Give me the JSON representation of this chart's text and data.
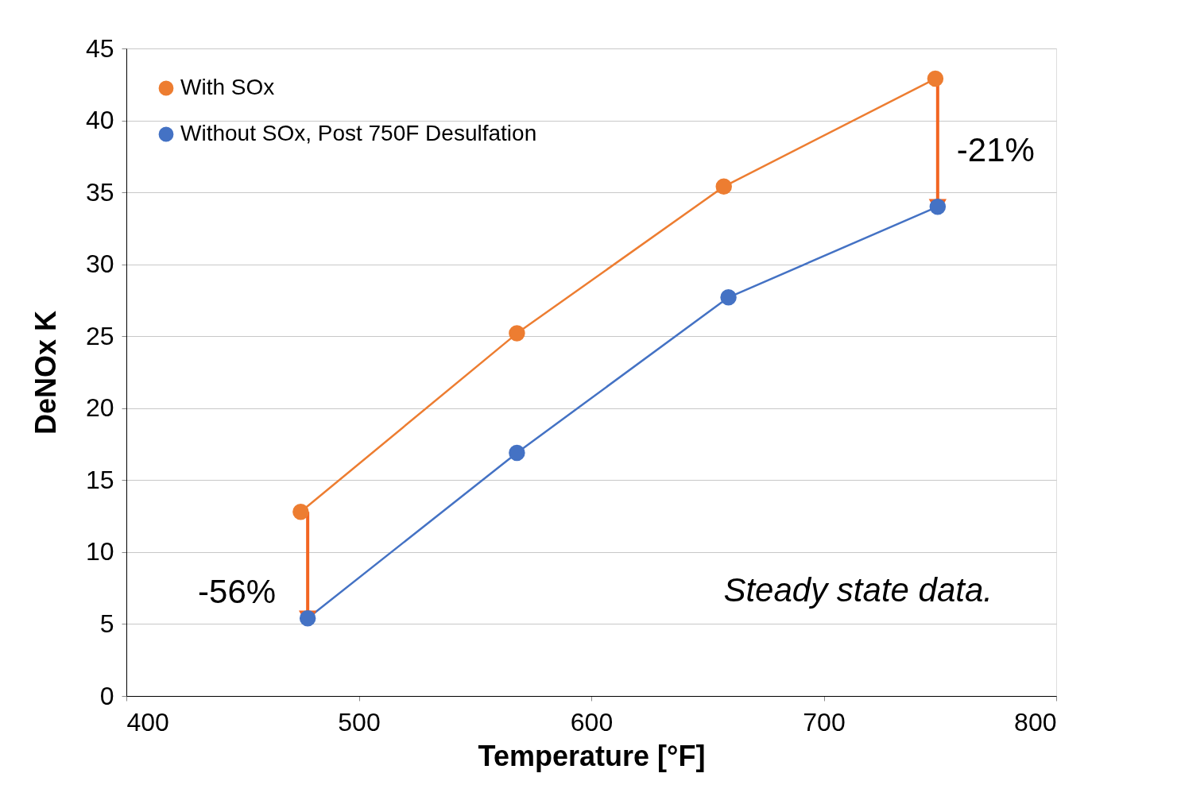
{
  "chart_data": {
    "type": "line",
    "xlabel": "Temperature [°F]",
    "ylabel": "DeNOx K",
    "xlim": [
      400,
      800
    ],
    "xticks": [
      400,
      500,
      600,
      700,
      800
    ],
    "ylim": [
      0,
      45
    ],
    "yticks": [
      0,
      5,
      10,
      15,
      20,
      25,
      30,
      35,
      40,
      45
    ],
    "grid": "y",
    "legend": "top left",
    "marker": "circle",
    "series": [
      {
        "name": "With SOx",
        "color": "#ed7d31",
        "x": [
          475,
          568,
          657,
          748
        ],
        "values": [
          12.8,
          25.2,
          35.4,
          42.9
        ]
      },
      {
        "name": "Without SOx, Post 750F Desulfation",
        "color": "#4472c4",
        "x": [
          478,
          568,
          659,
          749
        ],
        "values": [
          5.4,
          16.9,
          27.7,
          34.0
        ]
      }
    ],
    "annotations": [
      {
        "text": "-21%",
        "x": 749,
        "y": 34.0
      },
      {
        "text": "-56%",
        "x": 478,
        "y": 5.4
      },
      "Steady state data."
    ]
  }
}
